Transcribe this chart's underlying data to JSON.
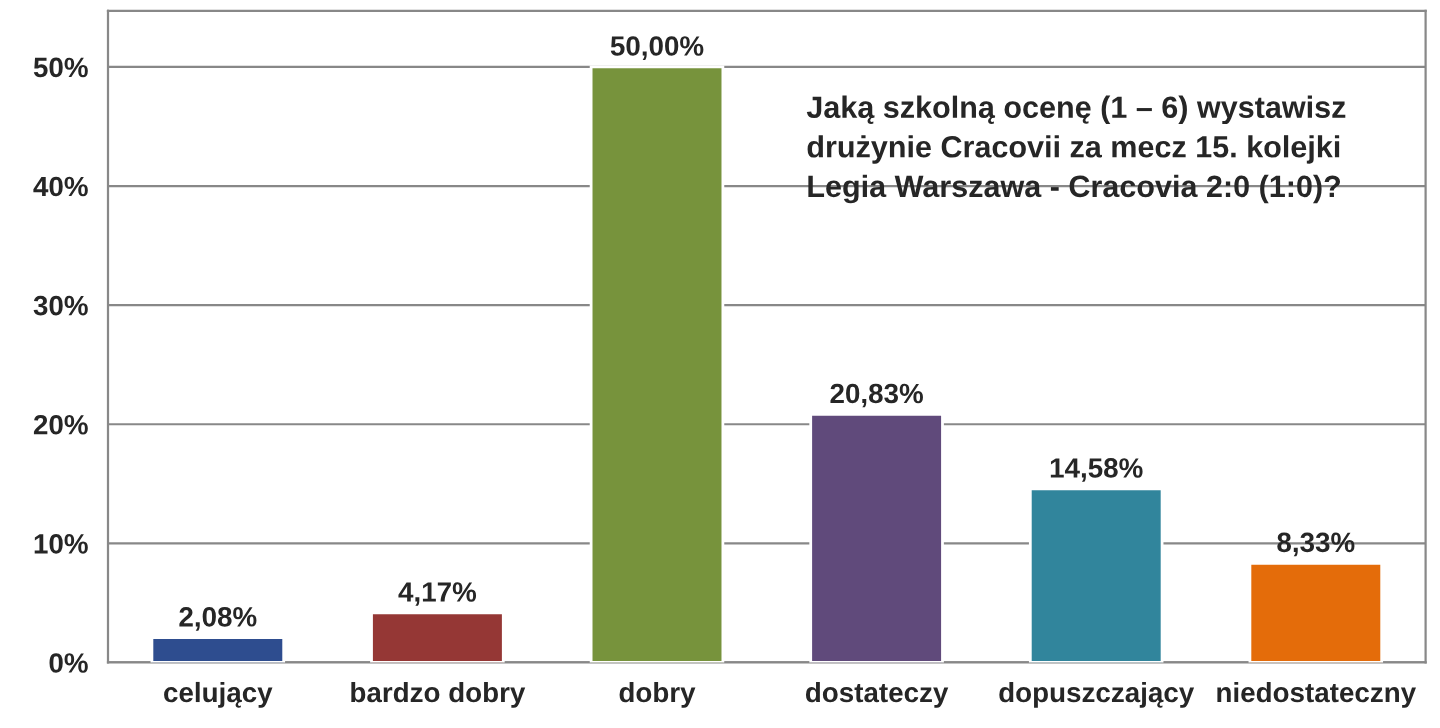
{
  "chart_data": {
    "type": "bar",
    "title": "Jaką szkolną ocenę (1 – 6) wystawisz\ndrużynie Cracovii za mecz 15. kolejki\nLegia Warszawa - Cracovia 2:0 (1:0)?",
    "categories": [
      "celujący",
      "bardzo dobry",
      "dobry",
      "dostateczy",
      "dopuszczający",
      "niedostateczny"
    ],
    "values": [
      2.08,
      4.17,
      50.0,
      20.83,
      14.58,
      8.33
    ],
    "value_labels": [
      "2,08%",
      "4,17%",
      "50,00%",
      "20,83%",
      "14,58%",
      "8,33%"
    ],
    "colors": [
      "#2e4d8f",
      "#953735",
      "#77933c",
      "#604a7b",
      "#31859c",
      "#e46c0a"
    ],
    "ylim": [
      0,
      54.7
    ],
    "yticks": [
      {
        "value": 0,
        "label": "0%"
      },
      {
        "value": 10,
        "label": "10%"
      },
      {
        "value": 20,
        "label": "20%"
      },
      {
        "value": 30,
        "label": "30%"
      },
      {
        "value": 40,
        "label": "40%"
      },
      {
        "value": 50,
        "label": "50%"
      }
    ],
    "grid": "y",
    "legend": false
  }
}
